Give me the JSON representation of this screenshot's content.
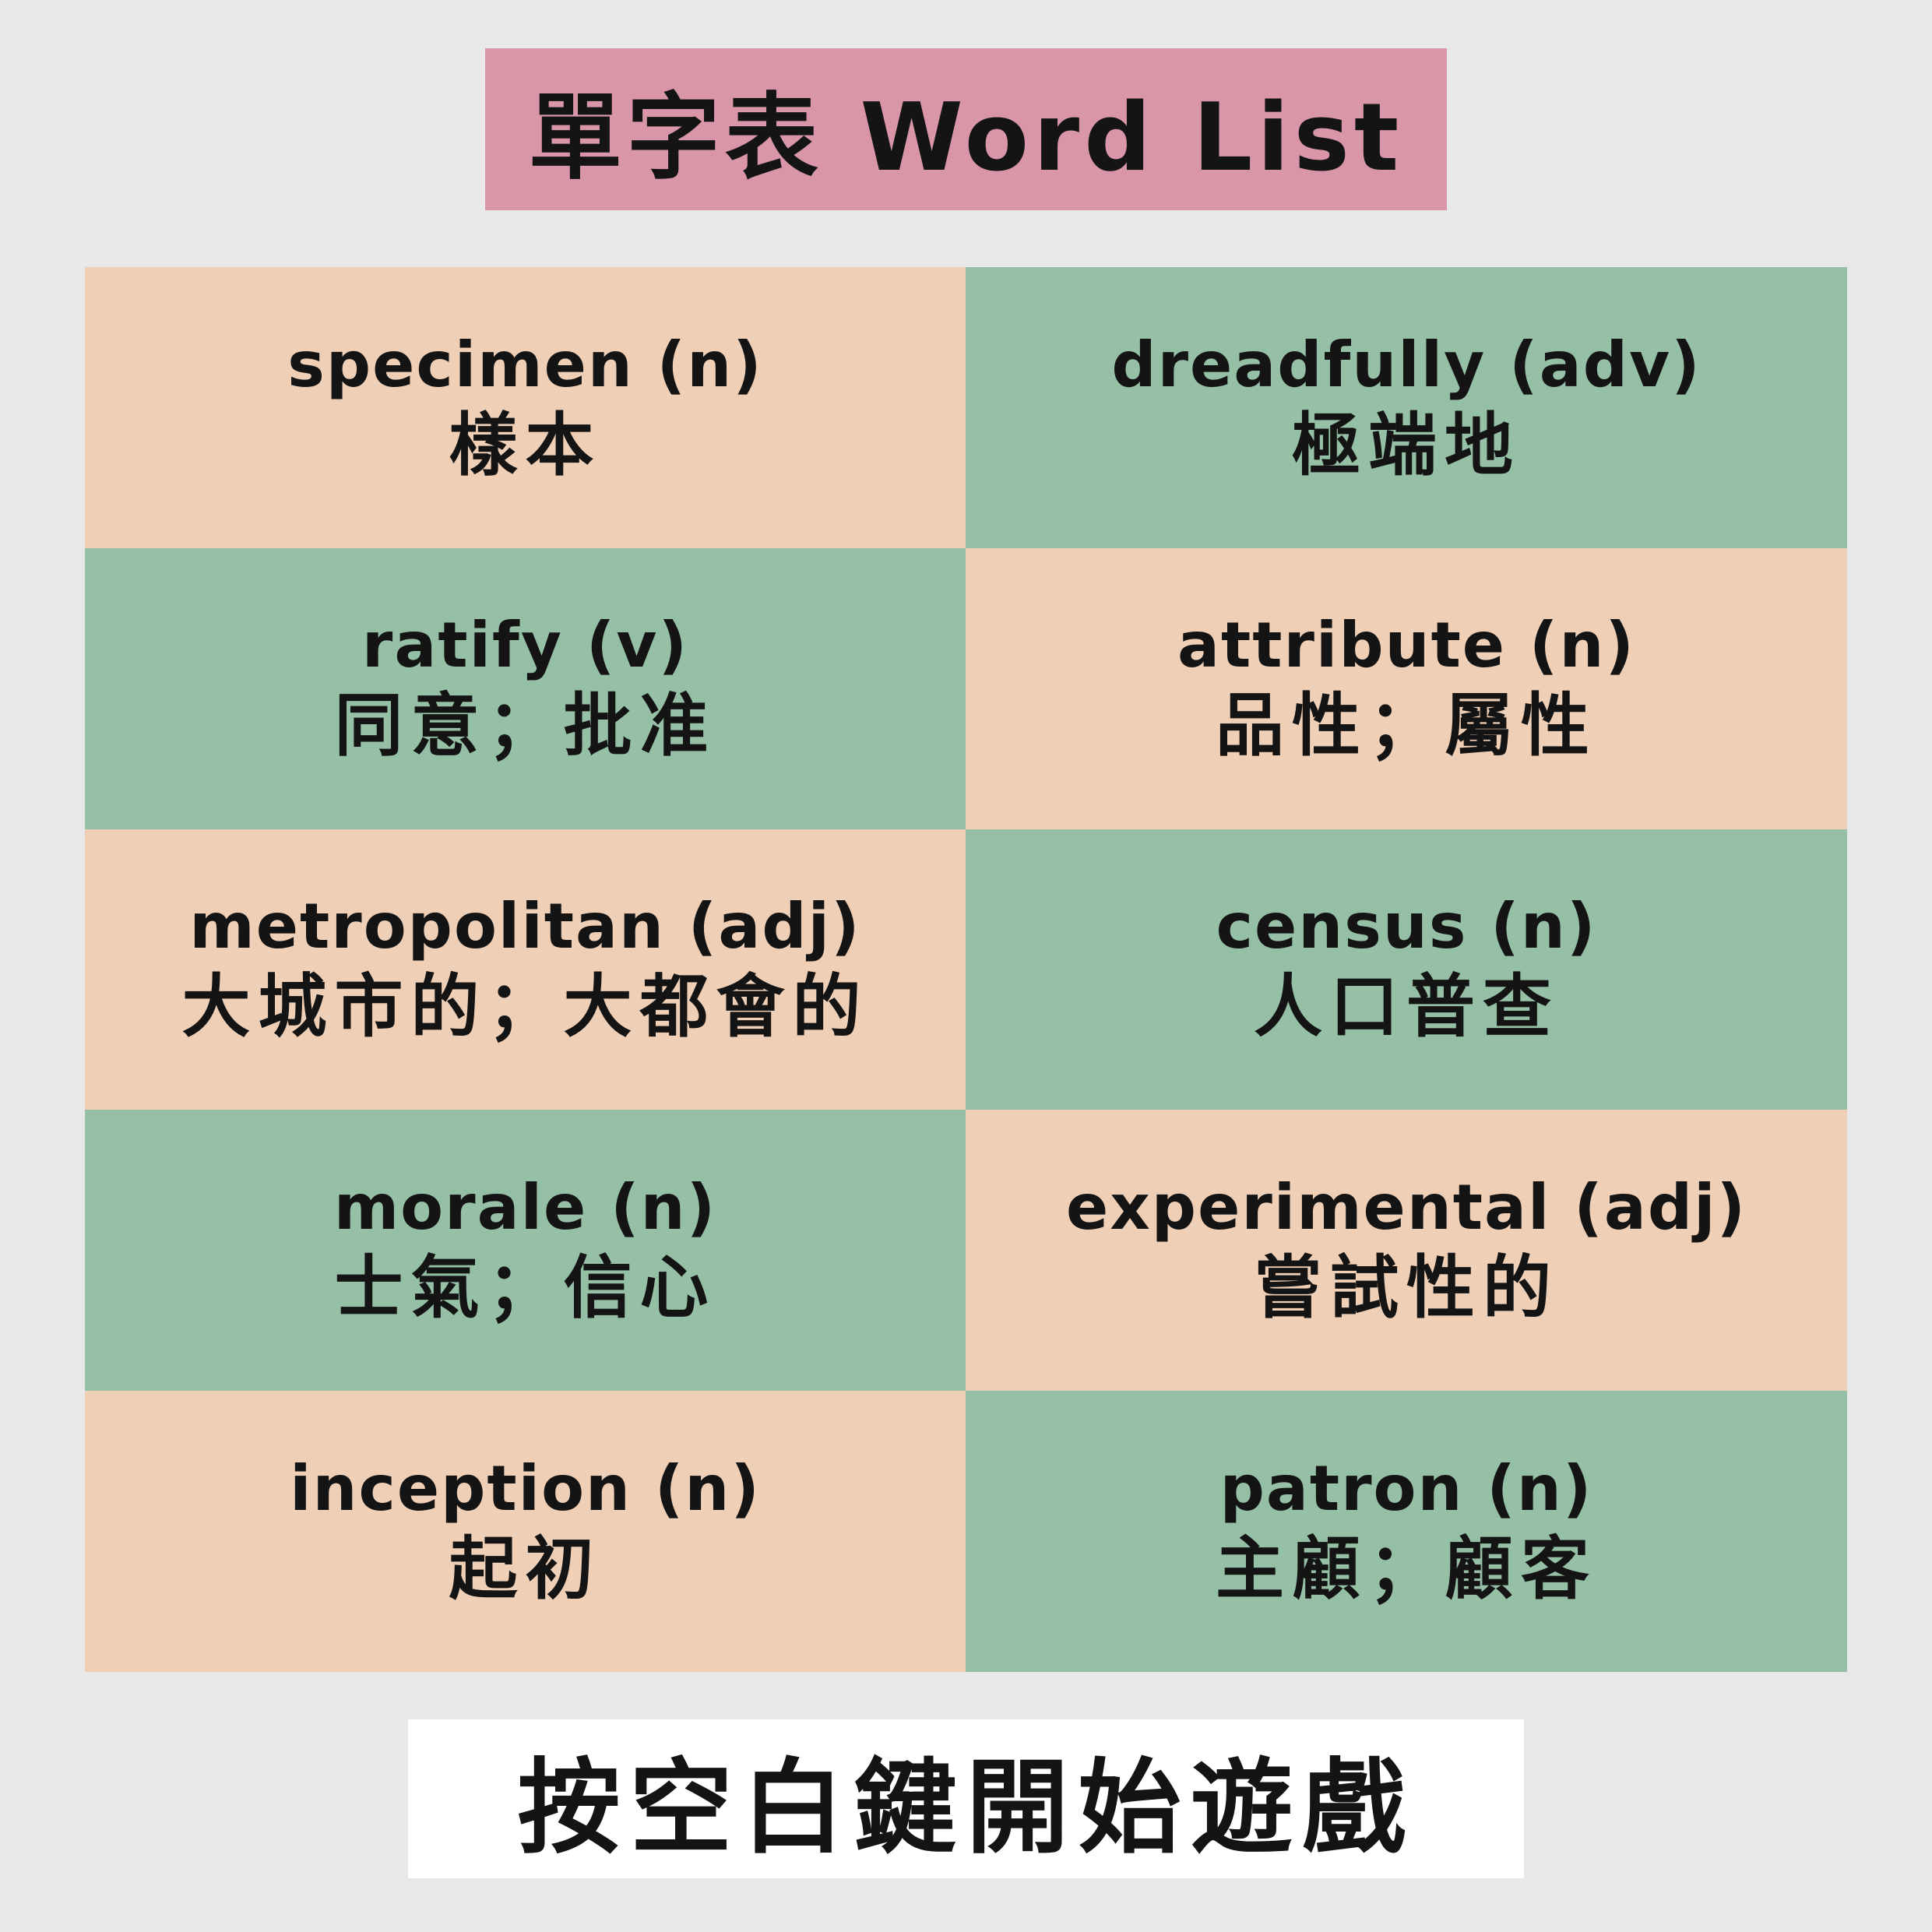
{
  "title": "單字表 Word List",
  "colors": {
    "background": "#e8e8e8",
    "title_box": "#d896a8",
    "peach": "#efcfb6",
    "green": "#95c0a5",
    "start_box": "#ffffff"
  },
  "words": [
    {
      "word": "specimen (n)",
      "meaning": "樣本"
    },
    {
      "word": "dreadfully (adv)",
      "meaning": "極端地"
    },
    {
      "word": "ratify (v)",
      "meaning": "同意；批准"
    },
    {
      "word": "attribute (n)",
      "meaning": "品性；屬性"
    },
    {
      "word": "metropolitan (adj)",
      "meaning": "大城市的；大都會的"
    },
    {
      "word": "census (n)",
      "meaning": "人口普查"
    },
    {
      "word": "morale (n)",
      "meaning": "士氣；信心"
    },
    {
      "word": "experimental (adj)",
      "meaning": "嘗試性的"
    },
    {
      "word": "inception (n)",
      "meaning": "起初"
    },
    {
      "word": "patron (n)",
      "meaning": "主顧；顧客"
    }
  ],
  "start_prompt": "按空白鍵開始遊戲"
}
